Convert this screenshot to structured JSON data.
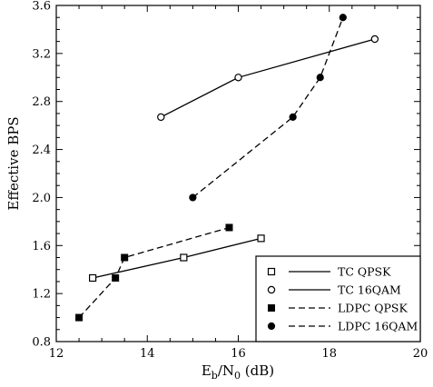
{
  "chart_data": {
    "type": "line",
    "xlabel": {
      "main": "E",
      "sub1": "b",
      "sep": "/N",
      "sub2": "0",
      "unit": " (dB)"
    },
    "ylabel": "Effective BPS",
    "xlim": [
      12,
      20
    ],
    "ylim": [
      0.8,
      3.6
    ],
    "xticks": [
      12,
      14,
      16,
      18,
      20
    ],
    "yticks": [
      0.8,
      1.2,
      1.6,
      2.0,
      2.4,
      2.8,
      3.2,
      3.6
    ],
    "xtick_labels": [
      "12",
      "14",
      "16",
      "18",
      "20"
    ],
    "ytick_labels": [
      "0.8",
      "1.2",
      "1.6",
      "2.0",
      "2.4",
      "2.8",
      "3.2",
      "3.6"
    ],
    "grid": false,
    "legend_position": "bottom-right",
    "series": [
      {
        "name": "TC QPSK",
        "marker": "open-square",
        "line": "solid",
        "x": [
          12.8,
          14.8,
          16.5
        ],
        "y": [
          1.33,
          1.5,
          1.66
        ]
      },
      {
        "name": "TC 16QAM",
        "marker": "open-circle",
        "line": "solid",
        "x": [
          14.3,
          16.0,
          19.0
        ],
        "y": [
          2.67,
          3.0,
          3.32
        ]
      },
      {
        "name": "LDPC QPSK",
        "marker": "filled-square",
        "line": "dashed",
        "x": [
          12.5,
          13.3,
          13.5,
          15.8
        ],
        "y": [
          1.0,
          1.33,
          1.5,
          1.75
        ]
      },
      {
        "name": "LDPC 16QAM",
        "marker": "filled-circle",
        "line": "dashed",
        "x": [
          15.0,
          17.2,
          17.8,
          18.3
        ],
        "y": [
          2.0,
          2.67,
          3.0,
          3.5
        ]
      }
    ]
  }
}
